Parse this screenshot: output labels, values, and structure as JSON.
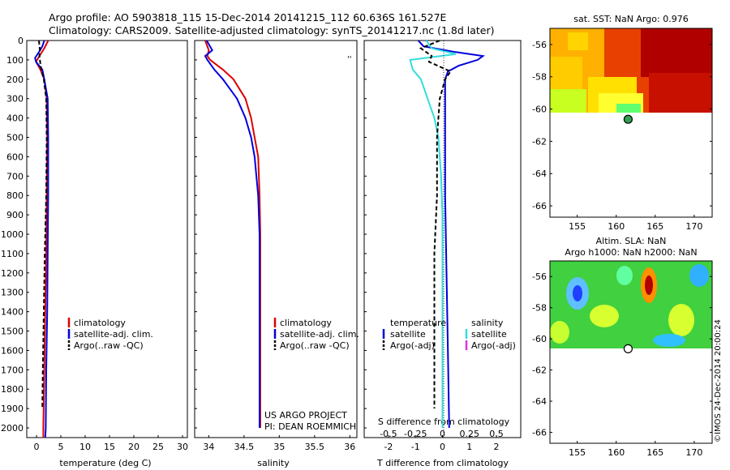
{
  "header": {
    "line1": "Argo profile: AO 5903818_115 15-Dec-2014 20141215_112 60.636S 161.527E",
    "line2": "Climatology: CARS2009. Satellite-adjusted climatology: synTS_20141217.nc (1.8d later)"
  },
  "colors": {
    "climatology": "#dd0000",
    "satellite": "#0000dd",
    "argo": "#000000",
    "salinity_satellite": "#33dddd",
    "salinity_argo": "#dd33dd"
  },
  "chart_data": [
    {
      "type": "line",
      "panel": "temperature",
      "xlabel": "temperature (deg C)",
      "ylabel": "",
      "xlim": [
        -2,
        31
      ],
      "ylim": [
        2050,
        0
      ],
      "xticks": [
        "0",
        "5",
        "10",
        "15",
        "20",
        "25",
        "30"
      ],
      "yticks": [
        "0",
        "100",
        "200",
        "300",
        "400",
        "500",
        "600",
        "700",
        "800",
        "900",
        "1000",
        "1100",
        "1200",
        "1300",
        "1400",
        "1500",
        "1600",
        "1700",
        "1800",
        "1900",
        "2000"
      ],
      "legend": [
        "climatology",
        "satellite-adj. clim.",
        "Argo(..raw -QC)"
      ],
      "series": [
        {
          "name": "climatology",
          "depth": [
            0,
            40,
            80,
            110,
            150,
            200,
            300,
            500,
            800,
            1100,
            1400,
            1700,
            2000,
            2050
          ],
          "values": [
            2.4,
            1.6,
            0.6,
            -0.1,
            0.8,
            1.6,
            2.1,
            2.2,
            2.1,
            2.0,
            1.8,
            1.6,
            1.4,
            1.4
          ]
        },
        {
          "name": "satellite-adj. clim.",
          "depth": [
            0,
            30,
            60,
            90,
            110,
            150,
            200,
            300,
            500,
            800,
            1100,
            1400,
            1700,
            2000,
            2050
          ],
          "values": [
            1.6,
            1.2,
            0.5,
            -0.3,
            -0.1,
            1.2,
            1.6,
            2.3,
            2.4,
            2.4,
            2.3,
            2.2,
            2.0,
            1.9,
            1.8
          ]
        },
        {
          "name": "Argo(..raw -QC)",
          "depth": [
            0,
            50,
            80,
            120,
            150,
            200,
            300,
            500,
            800,
            1100,
            1400,
            1700,
            1900
          ],
          "values": [
            0.5,
            0.7,
            0.6,
            0.8,
            1.0,
            1.5,
            2.0,
            2.1,
            2.0,
            1.7,
            1.5,
            1.3,
            1.2
          ]
        }
      ]
    },
    {
      "type": "line",
      "panel": "salinity",
      "xlabel": "salinity",
      "ylabel": "",
      "xlim": [
        33.8,
        36.1
      ],
      "ylim": [
        2050,
        0
      ],
      "xticks": [
        "34",
        "34.5",
        "35",
        "35.5",
        "36"
      ],
      "legend": [
        "climatology",
        "satellite-adj. clim.",
        "Argo(..raw -QC)"
      ],
      "annotations": [
        "US ARGO PROJECT",
        "PI: DEAN ROEMMICH"
      ],
      "series": [
        {
          "name": "climatology",
          "depth": [
            0,
            50,
            80,
            100,
            150,
            200,
            300,
            400,
            500,
            600,
            800,
            1000,
            1200,
            1500,
            2000
          ],
          "values": [
            33.95,
            34.0,
            33.98,
            34.02,
            34.2,
            34.35,
            34.52,
            34.6,
            34.65,
            34.7,
            34.72,
            34.73,
            34.73,
            34.73,
            34.73
          ]
        },
        {
          "name": "satellite-adj. clim.",
          "depth": [
            0,
            50,
            80,
            100,
            150,
            200,
            300,
            400,
            500,
            600,
            800,
            1000,
            1200,
            1500,
            2000
          ],
          "values": [
            33.97,
            34.05,
            33.95,
            33.98,
            34.08,
            34.2,
            34.4,
            34.52,
            34.6,
            34.65,
            34.7,
            34.72,
            34.72,
            34.72,
            34.72
          ]
        }
      ]
    },
    {
      "type": "line",
      "panel": "difference",
      "xlabel": "T difference from climatology",
      "xlabel2": "S difference from climatology",
      "xlim": [
        -2.9,
        2.9
      ],
      "ylim": [
        2050,
        0
      ],
      "xticks": [
        "-2",
        "-1",
        "0",
        "1",
        "2"
      ],
      "xticks2": [
        "-0.5",
        "-0.25",
        "0",
        "0.25",
        "0.5"
      ],
      "legend_headers": [
        "temperature",
        "salinity"
      ],
      "legend": [
        "satellite",
        "Argo(-adj)",
        "satellite",
        "Argo(-adj)"
      ],
      "series": [
        {
          "name": "temperature satellite",
          "depth": [
            0,
            30,
            60,
            80,
            100,
            130,
            160,
            200,
            300,
            500,
            800,
            1200,
            1600,
            2000
          ],
          "values": [
            -0.9,
            -0.7,
            0.5,
            1.5,
            1.3,
            0.6,
            0.2,
            0.1,
            0.1,
            0.1,
            0.1,
            0.15,
            0.2,
            0.25
          ]
        },
        {
          "name": "salinity satellite",
          "depth": [
            0,
            40,
            70,
            100,
            150,
            200,
            300,
            400,
            500,
            700,
            900,
            1100,
            1400,
            1800,
            2000
          ],
          "values": [
            -0.6,
            -0.4,
            0.5,
            -1.2,
            -1.1,
            -0.8,
            -0.55,
            -0.3,
            -0.15,
            -0.05,
            0,
            0,
            0,
            0,
            0
          ]
        },
        {
          "name": "temperature Argo(-adj)",
          "depth": [
            0,
            40,
            80,
            110,
            160,
            200,
            300,
            500,
            800,
            1100,
            1400,
            1700,
            1900
          ],
          "values": [
            -0.1,
            -0.8,
            -0.4,
            -0.5,
            0.3,
            0.1,
            -0.1,
            -0.2,
            -0.2,
            -0.3,
            -0.3,
            -0.3,
            -0.3
          ]
        }
      ]
    }
  ],
  "maps": {
    "sst": {
      "title": "sat. SST: NaN Argo: 0.976",
      "xticks": [
        "155",
        "160",
        "165",
        "170"
      ],
      "yticks": [
        "-56",
        "-58",
        "-60",
        "-62",
        "-64",
        "-66"
      ],
      "marker_lon": 161.527,
      "marker_lat": -60.636
    },
    "sla": {
      "title1": "Altim. SLA: NaN",
      "title2": "Argo h1000: NaN h2000: NaN",
      "xticks": [
        "155",
        "160",
        "165",
        "170"
      ],
      "yticks": [
        "-56",
        "-58",
        "-60",
        "-62",
        "-64",
        "-66"
      ],
      "marker_lon": 161.527,
      "marker_lat": -60.636
    }
  },
  "credit": "©IMOS 24-Dec-2014 20:00:24"
}
